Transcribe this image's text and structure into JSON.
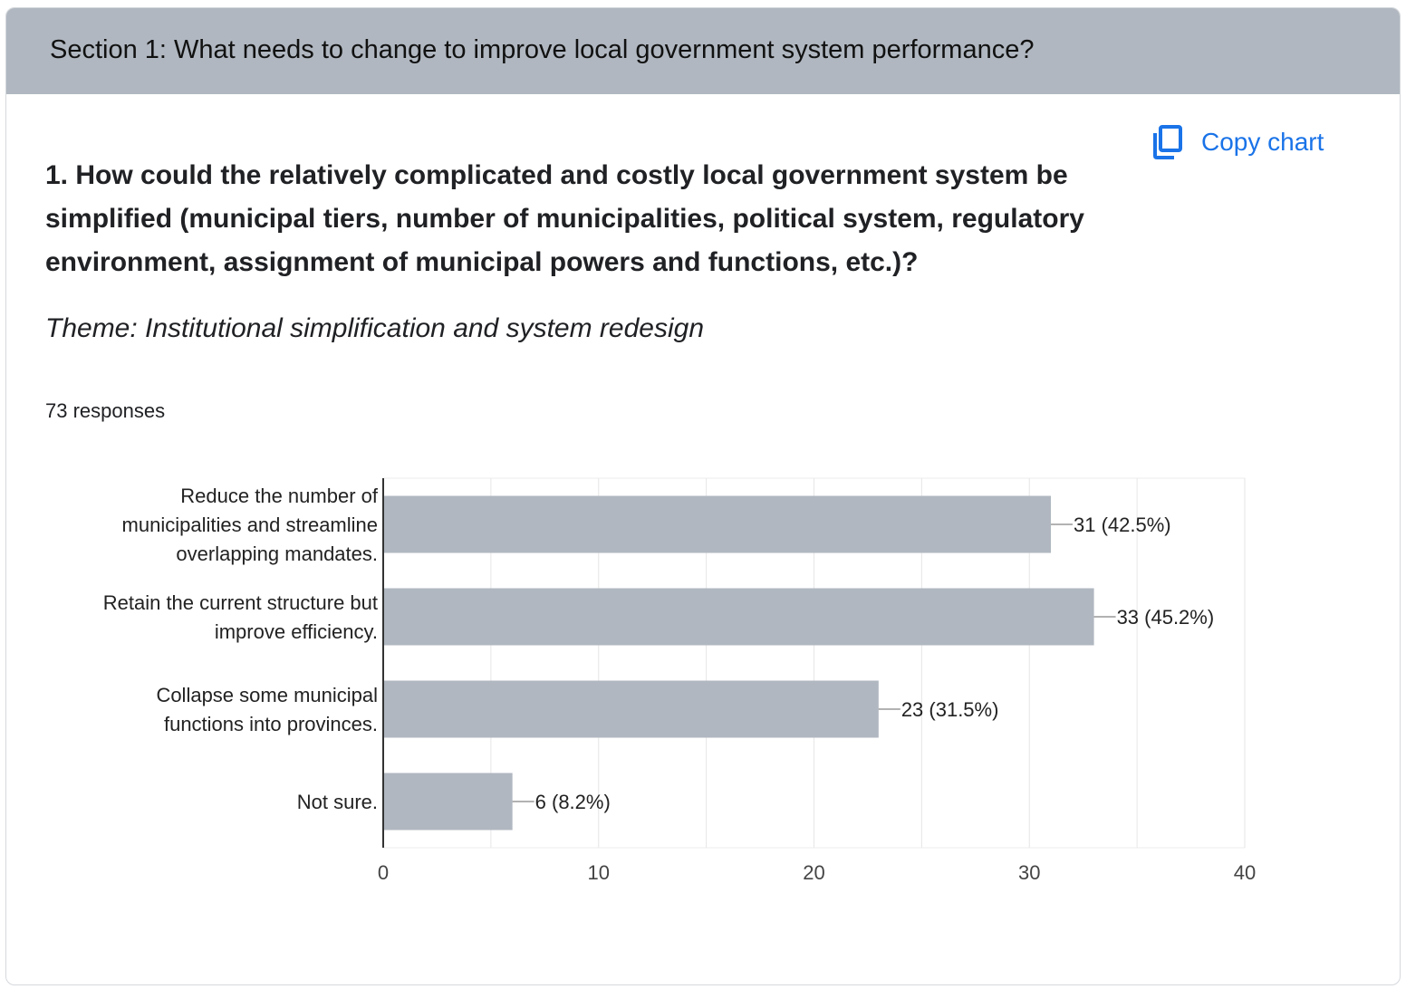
{
  "header": {
    "title": "Section 1: What needs to change to improve local government system performance?"
  },
  "toolbar": {
    "copy_label": "Copy chart",
    "copy_icon": "copy-icon"
  },
  "question": {
    "text": "1. How could the relatively complicated and costly local government system be simplified (municipal tiers, number of municipalities, political system, regulatory environment, assignment of municipal powers and functions, etc.)?",
    "theme": "Theme: Institutional simplification and system redesign",
    "responses": "73 responses"
  },
  "colors": {
    "bar": "#b0b7c0",
    "accent": "#1a73e8",
    "header": "#b0b7c0",
    "grid": "#e6e6e6"
  },
  "chart_data": {
    "type": "bar",
    "orientation": "horizontal",
    "categories": [
      [
        "Reduce the number of",
        "municipalities and streamline",
        "overlapping mandates."
      ],
      [
        "Retain the current structure but",
        "improve efficiency."
      ],
      [
        "Collapse some municipal",
        "functions into provinces."
      ],
      [
        "Not sure."
      ]
    ],
    "values": [
      31,
      33,
      23,
      6
    ],
    "data_labels": [
      "31 (42.5%)",
      "33 (45.2%)",
      "23 (31.5%)",
      "6 (8.2%)"
    ],
    "xlim": [
      0,
      40
    ],
    "xticks": [
      0,
      10,
      20,
      30,
      40
    ],
    "minor_gridlines": true,
    "title": "",
    "xlabel": "",
    "ylabel": ""
  }
}
